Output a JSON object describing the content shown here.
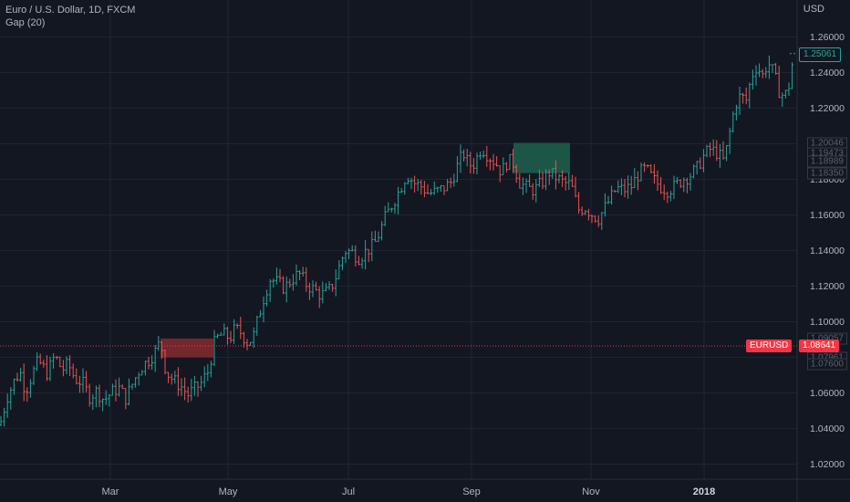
{
  "legend": {
    "symbol": "Euro / U.S. Dollar, 1D, FXCM",
    "indicator": "Gap (20)"
  },
  "currency": "USD",
  "last_price": {
    "value": "1.25061",
    "color": "#26a69a"
  },
  "marker": {
    "label": "EURUSD",
    "value": "1.08641",
    "color": "#f23645"
  },
  "gap_labels": [
    "1.20046",
    "1.19473",
    "1.18989",
    "1.18350",
    "1.09057",
    "1.08531",
    "1.07961",
    "1.07600"
  ],
  "colors": {
    "up": "#26a69a",
    "down": "#ef5350",
    "gap_up": "#1e5d4a",
    "gap_down": "#7d2a2e",
    "grid": "#1f2433"
  },
  "chart_data": {
    "type": "ohlc",
    "title": "Euro / U.S. Dollar, 1D, FXCM",
    "ylim": [
      1.016,
      1.268
    ],
    "yticks": [
      "1.26000",
      "1.24000",
      "1.22000",
      "1.20000",
      "1.18000",
      "1.16000",
      "1.14000",
      "1.12000",
      "1.10000",
      "1.08000",
      "1.06000",
      "1.04000",
      "1.02000"
    ],
    "xticks": [
      "Mar",
      "May",
      "Jul",
      "Sep",
      "Nov",
      "2018"
    ],
    "xtick_bold": "2018",
    "close_path": [
      [
        0,
        1.042
      ],
      [
        8,
        1.058
      ],
      [
        15,
        1.066
      ],
      [
        22,
        1.072
      ],
      [
        28,
        1.061
      ],
      [
        35,
        1.07
      ],
      [
        42,
        1.078
      ],
      [
        52,
        1.071
      ],
      [
        60,
        1.081
      ],
      [
        68,
        1.073
      ],
      [
        75,
        1.076
      ],
      [
        82,
        1.068
      ],
      [
        90,
        1.066
      ],
      [
        98,
        1.058
      ],
      [
        106,
        1.061
      ],
      [
        114,
        1.056
      ],
      [
        122,
        1.06
      ],
      [
        130,
        1.063
      ],
      [
        138,
        1.057
      ],
      [
        146,
        1.066
      ],
      [
        154,
        1.074
      ],
      [
        162,
        1.078
      ],
      [
        170,
        1.083
      ],
      [
        176,
        1.089
      ],
      [
        182,
        1.072
      ],
      [
        190,
        1.067
      ],
      [
        198,
        1.064
      ],
      [
        206,
        1.059
      ],
      [
        213,
        1.062
      ],
      [
        220,
        1.065
      ],
      [
        228,
        1.072
      ],
      [
        232,
        1.081
      ],
      [
        236,
        1.09
      ],
      [
        244,
        1.093
      ],
      [
        252,
        1.091
      ],
      [
        258,
        1.096
      ],
      [
        264,
        1.094
      ],
      [
        272,
        1.088
      ],
      [
        278,
        1.092
      ],
      [
        284,
        1.104
      ],
      [
        290,
        1.115
      ],
      [
        296,
        1.124
      ],
      [
        304,
        1.122
      ],
      [
        312,
        1.119
      ],
      [
        320,
        1.124
      ],
      [
        328,
        1.127
      ],
      [
        336,
        1.121
      ],
      [
        344,
        1.118
      ],
      [
        352,
        1.115
      ],
      [
        360,
        1.117
      ],
      [
        366,
        1.122
      ],
      [
        372,
        1.131
      ],
      [
        378,
        1.14
      ],
      [
        386,
        1.139
      ],
      [
        394,
        1.136
      ],
      [
        402,
        1.14
      ],
      [
        410,
        1.143
      ],
      [
        416,
        1.15
      ],
      [
        422,
        1.158
      ],
      [
        430,
        1.166
      ],
      [
        438,
        1.174
      ],
      [
        446,
        1.183
      ],
      [
        454,
        1.178
      ],
      [
        462,
        1.176
      ],
      [
        470,
        1.172
      ],
      [
        478,
        1.173
      ],
      [
        486,
        1.175
      ],
      [
        494,
        1.178
      ],
      [
        502,
        1.188
      ],
      [
        508,
        1.195
      ],
      [
        514,
        1.188
      ],
      [
        520,
        1.189
      ],
      [
        528,
        1.198
      ],
      [
        536,
        1.193
      ],
      [
        544,
        1.189
      ],
      [
        550,
        1.184
      ],
      [
        556,
        1.19
      ],
      [
        562,
        1.19
      ],
      [
        570,
        1.178
      ],
      [
        578,
        1.175
      ],
      [
        586,
        1.174
      ],
      [
        594,
        1.178
      ],
      [
        602,
        1.184
      ],
      [
        610,
        1.181
      ],
      [
        618,
        1.178
      ],
      [
        626,
        1.177
      ],
      [
        634,
        1.163
      ],
      [
        642,
        1.164
      ],
      [
        650,
        1.16
      ],
      [
        656,
        1.158
      ],
      [
        662,
        1.163
      ],
      [
        668,
        1.168
      ],
      [
        676,
        1.175
      ],
      [
        684,
        1.174
      ],
      [
        692,
        1.176
      ],
      [
        700,
        1.183
      ],
      [
        708,
        1.186
      ],
      [
        716,
        1.18
      ],
      [
        724,
        1.176
      ],
      [
        732,
        1.174
      ],
      [
        740,
        1.176
      ],
      [
        748,
        1.18
      ],
      [
        756,
        1.182
      ],
      [
        764,
        1.186
      ],
      [
        770,
        1.192
      ],
      [
        778,
        1.197
      ],
      [
        786,
        1.195
      ],
      [
        794,
        1.19
      ],
      [
        800,
        1.206
      ],
      [
        806,
        1.222
      ],
      [
        812,
        1.227
      ],
      [
        818,
        1.224
      ],
      [
        824,
        1.238
      ],
      [
        830,
        1.244
      ],
      [
        836,
        1.238
      ],
      [
        842,
        1.246
      ],
      [
        848,
        1.24
      ],
      [
        854,
        1.23
      ],
      [
        860,
        1.226
      ],
      [
        866,
        1.234
      ],
      [
        870,
        1.25
      ],
      [
        873,
        1.2506
      ]
    ],
    "gaps": [
      {
        "type": "down",
        "x_start": "Apr",
        "x_end": "late Apr",
        "top": 1.09057,
        "bottom": 1.08
      },
      {
        "type": "up",
        "x_start": "mid Sep",
        "x_end": "Oct",
        "top": 1.20046,
        "bottom": 1.1835
      }
    ]
  }
}
